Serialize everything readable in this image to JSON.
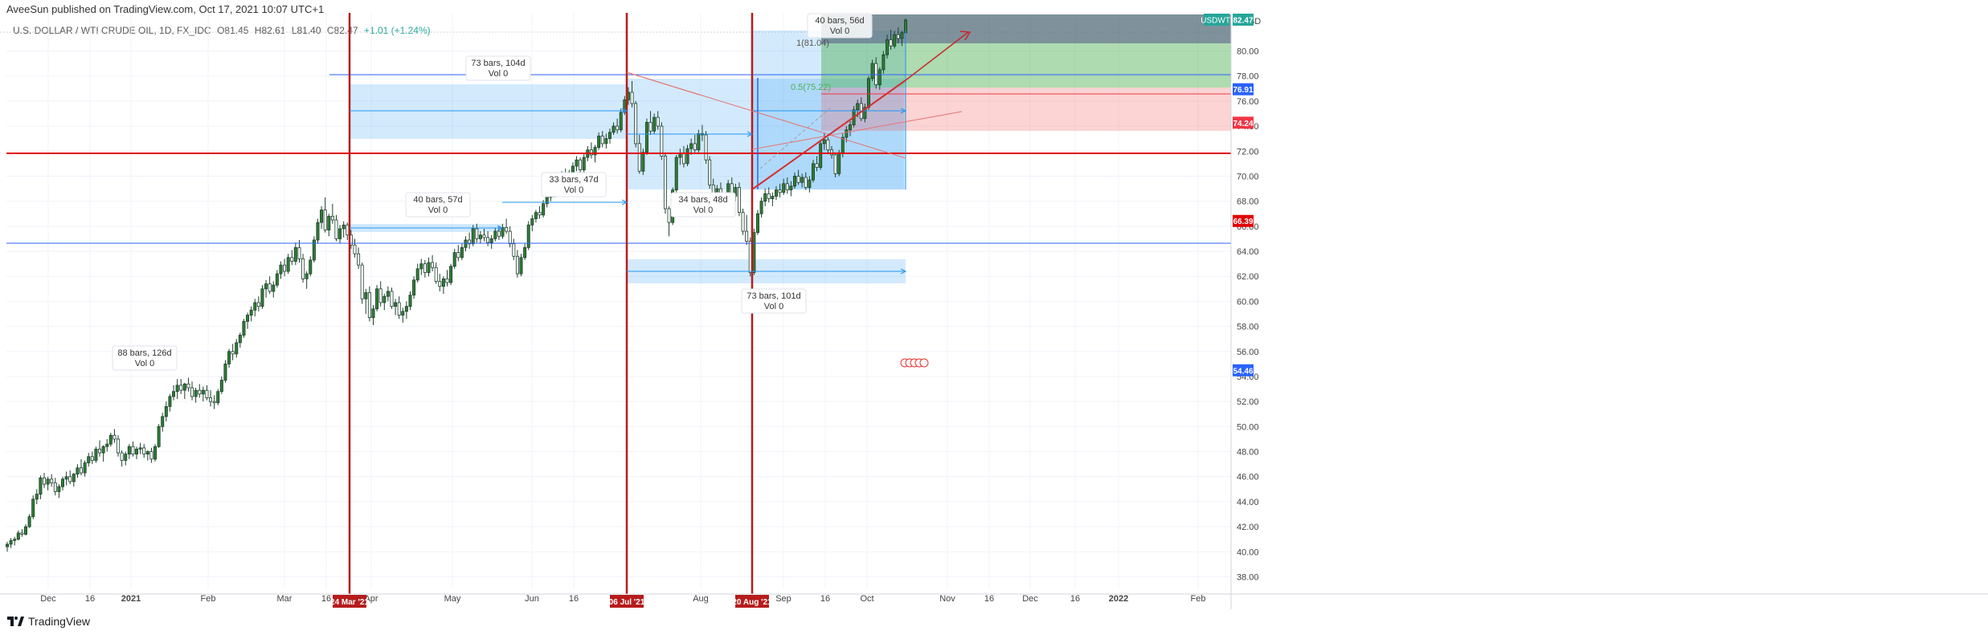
{
  "header": {
    "publisher_line": "AveeSun published on TradingView.com, Oct 17, 2021 10:07 UTC+1",
    "symbol_desc": "U.S. DOLLAR / WTI CRUDE OIL, 1D, FX_IDC",
    "ohlc": {
      "open": "O81.45",
      "high": "H82.61",
      "low": "L81.40",
      "close": "C82.47",
      "change": "+1.01 (+1.24%)"
    },
    "currency": "USD"
  },
  "footer": {
    "logo_text": "TradingView"
  },
  "chart_data": {
    "type": "candlestick",
    "symbol": "USDWTI",
    "y_range": [
      38,
      86
    ],
    "y_ticks": [
      "38.00",
      "40.00",
      "42.00",
      "44.00",
      "46.00",
      "48.00",
      "50.00",
      "52.00",
      "54.00",
      "56.00",
      "58.00",
      "60.00",
      "62.00",
      "64.00",
      "66.00",
      "68.00",
      "70.00",
      "72.00",
      "74.00",
      "76.00",
      "78.00",
      "80.00"
    ],
    "x_ticks": [
      "Dec",
      "16",
      "2021",
      "Feb",
      "Mar",
      "16",
      "Apr",
      "May",
      "Jun",
      "16",
      "Aug",
      "Sep",
      "16",
      "Oct",
      "Nov",
      "16",
      "Dec",
      "16",
      "2022",
      "Feb"
    ],
    "x_highlight_labels": [
      "24 Mar '21",
      "06 Jul '21",
      "20 Aug '21"
    ],
    "price_labels": [
      {
        "label": "USDWTI",
        "value": 82.47,
        "color": "#26a69a"
      },
      {
        "value": 76.91,
        "color": "#2962ff"
      },
      {
        "value": 74.24,
        "color": "#f23645"
      },
      {
        "value": 66.39,
        "color": "#e00000"
      },
      {
        "value": 54.46,
        "color": "#2962ff"
      }
    ],
    "range_notes": [
      {
        "line1": "40 bars, 56d",
        "line2": "Vol 0"
      },
      {
        "line1": "73 bars, 104d",
        "line2": "Vol 0"
      },
      {
        "line1": "33 bars, 47d",
        "line2": "Vol 0"
      },
      {
        "line1": "40 bars, 57d",
        "line2": "Vol 0"
      },
      {
        "line1": "34 bars, 48d",
        "line2": "Vol 0"
      },
      {
        "line1": "73 bars, 101d",
        "line2": "Vol 0"
      },
      {
        "line1": "88 bars, 126d",
        "line2": "Vol 0"
      }
    ],
    "fib_labels": [
      {
        "text": "1(81.04)"
      },
      {
        "text": "0.5(75.22)"
      }
    ],
    "grid": true,
    "ohlc_series": [
      [
        40.4,
        40.8,
        40.0,
        40.6
      ],
      [
        40.6,
        41.1,
        40.3,
        40.9
      ],
      [
        40.9,
        41.2,
        40.5,
        41.0
      ],
      [
        41.0,
        41.7,
        40.9,
        41.5
      ],
      [
        41.5,
        41.8,
        41.2,
        41.4
      ],
      [
        41.4,
        42.2,
        41.3,
        42.0
      ],
      [
        42.0,
        43.0,
        41.9,
        42.8
      ],
      [
        42.8,
        44.5,
        42.6,
        44.2
      ],
      [
        44.2,
        45.0,
        43.8,
        44.6
      ],
      [
        44.6,
        46.1,
        44.2,
        45.9
      ],
      [
        45.9,
        46.3,
        45.1,
        45.4
      ],
      [
        45.4,
        46.0,
        44.9,
        45.8
      ],
      [
        45.8,
        46.2,
        45.2,
        45.5
      ],
      [
        45.5,
        45.9,
        44.5,
        44.8
      ],
      [
        44.8,
        45.4,
        44.3,
        45.2
      ],
      [
        45.2,
        46.0,
        44.9,
        45.8
      ],
      [
        45.8,
        46.4,
        45.3,
        46.0
      ],
      [
        46.0,
        46.5,
        45.4,
        45.6
      ],
      [
        45.6,
        46.3,
        45.2,
        46.2
      ],
      [
        46.2,
        47.0,
        45.9,
        46.7
      ],
      [
        46.7,
        47.4,
        46.1,
        46.3
      ],
      [
        46.3,
        47.3,
        46.0,
        47.1
      ],
      [
        47.1,
        47.9,
        46.8,
        47.6
      ],
      [
        47.6,
        48.0,
        47.0,
        47.3
      ],
      [
        47.3,
        48.4,
        47.1,
        48.2
      ],
      [
        48.2,
        48.9,
        47.6,
        47.9
      ],
      [
        47.9,
        48.5,
        47.2,
        48.4
      ],
      [
        48.4,
        49.0,
        48.0,
        48.6
      ],
      [
        48.6,
        49.5,
        48.4,
        49.3
      ],
      [
        49.3,
        49.8,
        48.7,
        49.0
      ],
      [
        49.0,
        49.3,
        47.6,
        47.9
      ],
      [
        47.9,
        48.1,
        46.8,
        47.3
      ],
      [
        47.3,
        48.0,
        46.9,
        47.8
      ],
      [
        47.8,
        48.6,
        47.4,
        48.4
      ],
      [
        48.4,
        48.8,
        47.6,
        47.8
      ],
      [
        47.8,
        48.4,
        47.4,
        48.2
      ],
      [
        48.2,
        48.7,
        47.8,
        48.3
      ],
      [
        48.3,
        48.6,
        47.5,
        47.8
      ],
      [
        47.8,
        48.1,
        47.3,
        48.0
      ],
      [
        48.0,
        48.3,
        47.1,
        47.4
      ],
      [
        47.4,
        48.6,
        47.2,
        48.4
      ],
      [
        48.4,
        50.2,
        48.3,
        50.0
      ],
      [
        50.0,
        51.1,
        49.6,
        50.8
      ],
      [
        50.8,
        52.0,
        50.4,
        51.6
      ],
      [
        51.6,
        52.6,
        51.2,
        52.4
      ],
      [
        52.4,
        53.3,
        52.1,
        52.8
      ],
      [
        52.8,
        53.8,
        52.2,
        53.3
      ],
      [
        53.3,
        53.8,
        52.6,
        52.9
      ],
      [
        52.9,
        53.5,
        52.2,
        53.4
      ],
      [
        53.4,
        53.9,
        52.8,
        53.1
      ],
      [
        53.1,
        53.6,
        52.1,
        52.4
      ],
      [
        52.4,
        53.1,
        51.9,
        52.9
      ],
      [
        52.9,
        53.4,
        52.3,
        52.6
      ],
      [
        52.6,
        53.2,
        52.0,
        52.9
      ],
      [
        52.9,
        53.3,
        52.1,
        52.3
      ],
      [
        52.3,
        52.9,
        51.6,
        52.0
      ],
      [
        52.0,
        52.5,
        51.4,
        51.9
      ],
      [
        51.9,
        53.0,
        51.7,
        52.8
      ],
      [
        52.8,
        54.0,
        52.6,
        53.7
      ],
      [
        53.7,
        55.3,
        53.5,
        55.0
      ],
      [
        55.0,
        56.2,
        54.7,
        56.0
      ],
      [
        56.0,
        56.6,
        55.3,
        55.8
      ],
      [
        55.8,
        57.0,
        55.5,
        56.7
      ],
      [
        56.7,
        57.5,
        56.3,
        57.3
      ],
      [
        57.3,
        58.6,
        57.1,
        58.4
      ],
      [
        58.4,
        59.1,
        57.8,
        58.9
      ],
      [
        58.9,
        59.6,
        58.4,
        59.3
      ],
      [
        59.3,
        60.2,
        58.8,
        59.9
      ],
      [
        59.9,
        60.4,
        59.2,
        59.6
      ],
      [
        59.6,
        61.3,
        59.4,
        61.0
      ],
      [
        61.0,
        61.7,
        60.3,
        61.4
      ],
      [
        61.4,
        62.0,
        60.6,
        60.8
      ],
      [
        60.8,
        61.6,
        60.3,
        61.3
      ],
      [
        61.3,
        62.5,
        61.1,
        62.2
      ],
      [
        62.2,
        63.2,
        61.8,
        62.9
      ],
      [
        62.9,
        63.4,
        62.0,
        62.4
      ],
      [
        62.4,
        63.8,
        62.2,
        63.5
      ],
      [
        63.5,
        64.1,
        62.9,
        63.2
      ],
      [
        63.2,
        64.7,
        62.9,
        64.3
      ],
      [
        64.3,
        64.9,
        63.1,
        63.4
      ],
      [
        63.4,
        63.8,
        61.5,
        61.8
      ],
      [
        61.8,
        62.4,
        61.0,
        62.2
      ],
      [
        62.2,
        63.6,
        62.0,
        63.3
      ],
      [
        63.3,
        65.2,
        63.1,
        64.9
      ],
      [
        64.9,
        66.6,
        64.6,
        66.3
      ],
      [
        66.3,
        67.6,
        65.8,
        67.3
      ],
      [
        67.3,
        68.3,
        65.5,
        65.7
      ],
      [
        65.7,
        67.0,
        65.2,
        66.8
      ],
      [
        66.8,
        67.8,
        66.2,
        66.5
      ],
      [
        66.5,
        66.9,
        64.8,
        65.0
      ],
      [
        65.0,
        66.1,
        64.6,
        65.8
      ],
      [
        65.8,
        66.4,
        65.1,
        66.1
      ],
      [
        66.1,
        66.3,
        64.9,
        65.3
      ],
      [
        65.3,
        65.7,
        64.2,
        64.5
      ],
      [
        64.5,
        65.0,
        63.5,
        63.8
      ],
      [
        63.8,
        64.3,
        62.6,
        62.9
      ],
      [
        62.9,
        63.1,
        59.8,
        60.2
      ],
      [
        60.2,
        61.0,
        59.0,
        60.7
      ],
      [
        60.7,
        61.2,
        58.4,
        58.7
      ],
      [
        58.7,
        59.7,
        58.1,
        59.4
      ],
      [
        59.4,
        61.3,
        59.2,
        61.0
      ],
      [
        61.0,
        61.6,
        59.6,
        59.9
      ],
      [
        59.9,
        60.6,
        59.3,
        60.4
      ],
      [
        60.4,
        61.2,
        60.0,
        60.8
      ],
      [
        60.8,
        61.1,
        59.4,
        59.6
      ],
      [
        59.6,
        60.2,
        58.9,
        59.9
      ],
      [
        59.9,
        60.4,
        58.6,
        58.9
      ],
      [
        58.9,
        59.5,
        58.3,
        59.2
      ],
      [
        59.2,
        60.0,
        58.6,
        59.6
      ],
      [
        59.6,
        60.8,
        59.3,
        60.5
      ],
      [
        60.5,
        62.0,
        60.2,
        61.7
      ],
      [
        61.7,
        63.0,
        61.5,
        62.6
      ],
      [
        62.6,
        63.4,
        62.1,
        63.0
      ],
      [
        63.0,
        63.3,
        61.9,
        62.3
      ],
      [
        62.3,
        63.5,
        62.0,
        63.1
      ],
      [
        63.1,
        63.7,
        62.4,
        62.7
      ],
      [
        62.7,
        63.1,
        61.4,
        61.6
      ],
      [
        61.6,
        62.2,
        60.8,
        61.2
      ],
      [
        61.2,
        62.0,
        60.6,
        61.8
      ],
      [
        61.8,
        62.5,
        61.2,
        61.5
      ],
      [
        61.5,
        63.0,
        61.3,
        62.8
      ],
      [
        62.8,
        64.2,
        62.6,
        63.9
      ],
      [
        63.9,
        64.5,
        63.2,
        63.5
      ],
      [
        63.5,
        64.6,
        63.3,
        64.3
      ],
      [
        64.3,
        65.2,
        64.0,
        64.9
      ],
      [
        64.9,
        65.5,
        64.2,
        64.6
      ],
      [
        64.6,
        66.1,
        64.4,
        65.8
      ],
      [
        65.8,
        66.2,
        64.7,
        65.0
      ],
      [
        65.0,
        65.6,
        64.6,
        65.3
      ],
      [
        65.3,
        65.8,
        64.8,
        65.1
      ],
      [
        65.1,
        65.6,
        64.4,
        64.7
      ],
      [
        64.7,
        65.3,
        64.2,
        65.0
      ],
      [
        65.0,
        65.9,
        64.8,
        65.6
      ],
      [
        65.6,
        66.0,
        64.9,
        65.2
      ],
      [
        65.2,
        66.2,
        65.0,
        65.9
      ],
      [
        65.9,
        66.6,
        65.4,
        65.6
      ],
      [
        65.6,
        66.0,
        64.3,
        64.6
      ],
      [
        64.6,
        65.0,
        63.3,
        63.6
      ],
      [
        63.6,
        64.1,
        61.9,
        62.2
      ],
      [
        62.2,
        63.8,
        62.0,
        63.5
      ],
      [
        63.5,
        64.6,
        63.3,
        64.3
      ],
      [
        64.3,
        66.4,
        64.1,
        66.1
      ],
      [
        66.1,
        66.9,
        65.6,
        66.6
      ],
      [
        66.6,
        67.3,
        66.3,
        67.1
      ],
      [
        67.1,
        67.6,
        66.6,
        66.9
      ],
      [
        66.9,
        68.1,
        66.7,
        67.8
      ],
      [
        67.8,
        68.6,
        67.5,
        68.3
      ],
      [
        68.3,
        69.1,
        68.0,
        68.8
      ],
      [
        68.8,
        69.4,
        68.3,
        69.2
      ],
      [
        69.2,
        69.9,
        68.8,
        69.6
      ],
      [
        69.6,
        70.4,
        69.2,
        70.1
      ],
      [
        70.1,
        70.6,
        69.3,
        69.7
      ],
      [
        69.7,
        70.5,
        69.4,
        70.3
      ],
      [
        70.3,
        71.1,
        70.0,
        70.8
      ],
      [
        70.8,
        71.6,
        70.4,
        71.3
      ],
      [
        71.3,
        71.5,
        70.2,
        70.5
      ],
      [
        70.5,
        71.8,
        70.3,
        71.5
      ],
      [
        71.5,
        72.4,
        71.2,
        72.1
      ],
      [
        72.1,
        72.7,
        71.4,
        71.7
      ],
      [
        71.7,
        72.5,
        71.1,
        72.3
      ],
      [
        72.3,
        73.5,
        72.1,
        73.2
      ],
      [
        73.2,
        73.6,
        72.3,
        72.6
      ],
      [
        72.6,
        73.4,
        72.2,
        73.0
      ],
      [
        73.0,
        73.8,
        72.6,
        73.5
      ],
      [
        73.5,
        74.3,
        73.3,
        74.0
      ],
      [
        74.0,
        74.6,
        73.4,
        73.7
      ],
      [
        73.7,
        75.4,
        73.5,
        75.1
      ],
      [
        75.1,
        76.4,
        74.9,
        76.1
      ],
      [
        76.1,
        77.1,
        75.7,
        76.7
      ],
      [
        76.7,
        77.6,
        75.5,
        75.8
      ],
      [
        75.8,
        76.0,
        72.3,
        72.6
      ],
      [
        72.6,
        73.3,
        70.2,
        70.4
      ],
      [
        70.4,
        72.2,
        70.1,
        71.9
      ],
      [
        71.9,
        74.6,
        71.7,
        74.3
      ],
      [
        74.3,
        75.2,
        73.3,
        73.6
      ],
      [
        73.6,
        75.0,
        73.4,
        74.7
      ],
      [
        74.7,
        75.2,
        73.7,
        74.0
      ],
      [
        74.0,
        74.3,
        71.3,
        71.6
      ],
      [
        71.6,
        71.9,
        67.0,
        67.4
      ],
      [
        67.4,
        67.6,
        65.2,
        66.3
      ],
      [
        66.3,
        69.1,
        66.1,
        68.9
      ],
      [
        68.9,
        71.7,
        68.7,
        71.5
      ],
      [
        71.5,
        72.2,
        70.9,
        71.8
      ],
      [
        71.8,
        72.4,
        70.7,
        71.0
      ],
      [
        71.0,
        72.5,
        70.8,
        72.2
      ],
      [
        72.2,
        73.0,
        71.7,
        72.6
      ],
      [
        72.6,
        73.3,
        71.9,
        72.1
      ],
      [
        72.1,
        73.7,
        71.9,
        73.4
      ],
      [
        73.4,
        74.1,
        72.8,
        73.3
      ],
      [
        73.3,
        73.6,
        71.0,
        71.3
      ],
      [
        71.3,
        71.6,
        69.0,
        69.3
      ],
      [
        69.3,
        69.8,
        67.8,
        68.2
      ],
      [
        68.2,
        69.3,
        67.9,
        69.0
      ],
      [
        69.0,
        69.5,
        66.9,
        67.2
      ],
      [
        67.2,
        68.4,
        66.8,
        68.1
      ],
      [
        68.1,
        69.7,
        67.9,
        69.4
      ],
      [
        69.4,
        69.9,
        68.1,
        68.4
      ],
      [
        68.4,
        69.4,
        68.0,
        69.1
      ],
      [
        69.1,
        69.5,
        66.8,
        67.1
      ],
      [
        67.1,
        67.4,
        65.3,
        65.6
      ],
      [
        65.6,
        66.9,
        64.5,
        64.8
      ],
      [
        64.8,
        65.1,
        62.0,
        62.3
      ],
      [
        62.3,
        65.8,
        62.1,
        65.5
      ],
      [
        65.5,
        67.3,
        65.3,
        67.0
      ],
      [
        67.0,
        68.3,
        66.7,
        68.0
      ],
      [
        68.0,
        69.0,
        67.6,
        68.6
      ],
      [
        68.6,
        69.1,
        67.9,
        68.2
      ],
      [
        68.2,
        68.7,
        67.6,
        68.4
      ],
      [
        68.4,
        69.2,
        68.1,
        68.9
      ],
      [
        68.9,
        69.4,
        68.3,
        68.7
      ],
      [
        68.7,
        69.8,
        68.5,
        69.4
      ],
      [
        69.4,
        69.9,
        68.6,
        68.9
      ],
      [
        68.9,
        69.6,
        68.4,
        69.2
      ],
      [
        69.2,
        70.3,
        69.0,
        70.0
      ],
      [
        70.0,
        70.5,
        69.3,
        69.5
      ],
      [
        69.5,
        70.2,
        69.1,
        69.9
      ],
      [
        69.9,
        70.3,
        68.9,
        69.1
      ],
      [
        69.1,
        70.0,
        68.7,
        69.7
      ],
      [
        69.7,
        71.3,
        69.5,
        71.0
      ],
      [
        71.0,
        71.6,
        70.4,
        70.7
      ],
      [
        70.7,
        72.9,
        70.5,
        72.6
      ],
      [
        72.6,
        73.4,
        72.1,
        72.9
      ],
      [
        72.9,
        73.1,
        71.8,
        72.1
      ],
      [
        72.1,
        72.4,
        71.4,
        71.7
      ],
      [
        71.7,
        71.9,
        69.9,
        70.2
      ],
      [
        70.2,
        72.1,
        70.0,
        71.8
      ],
      [
        71.8,
        73.4,
        71.5,
        73.1
      ],
      [
        73.1,
        74.0,
        72.7,
        73.7
      ],
      [
        73.7,
        74.4,
        73.2,
        74.1
      ],
      [
        74.1,
        75.6,
        73.9,
        75.3
      ],
      [
        75.3,
        76.1,
        74.7,
        75.8
      ],
      [
        75.8,
        76.3,
        74.4,
        74.6
      ],
      [
        74.6,
        75.8,
        74.3,
        75.5
      ],
      [
        75.5,
        78.0,
        75.3,
        77.8
      ],
      [
        77.8,
        79.3,
        77.6,
        79.0
      ],
      [
        79.0,
        79.5,
        77.0,
        77.3
      ],
      [
        77.3,
        78.7,
        76.9,
        78.5
      ],
      [
        78.5,
        80.0,
        78.2,
        79.7
      ],
      [
        79.7,
        81.3,
        79.4,
        80.9
      ],
      [
        80.9,
        81.7,
        80.1,
        80.4
      ],
      [
        80.4,
        81.6,
        80.2,
        81.3
      ],
      [
        81.3,
        81.9,
        80.6,
        81.0
      ],
      [
        81.0,
        81.6,
        80.4,
        81.46
      ],
      [
        81.45,
        82.61,
        81.4,
        82.47
      ]
    ]
  }
}
